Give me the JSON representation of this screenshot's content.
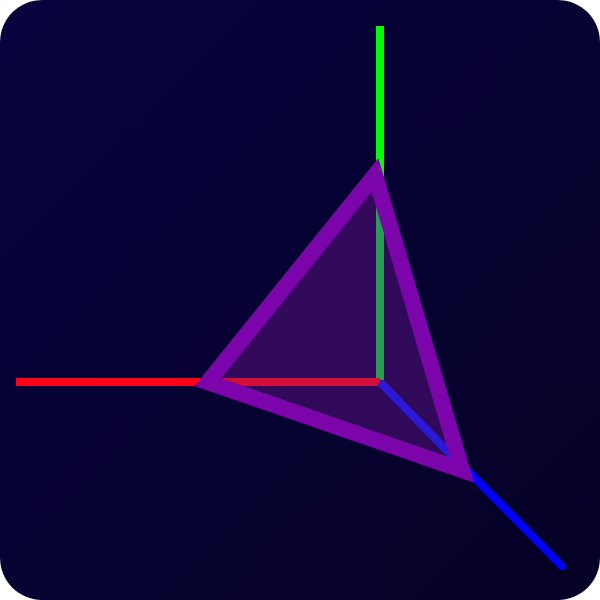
{
  "icon": {
    "name": "3d-axes-triangle-icon",
    "colors": {
      "background_top_left": "#08033f",
      "background_bottom_right": "#050125",
      "x_axis": "#ff001a",
      "y_axis": "#00ff00",
      "z_axis": "#0000ff",
      "triangle_stroke": "#7b04ab",
      "triangle_fill": "#3a0b63",
      "axis_overlap_tint": "#2a9d55"
    }
  }
}
